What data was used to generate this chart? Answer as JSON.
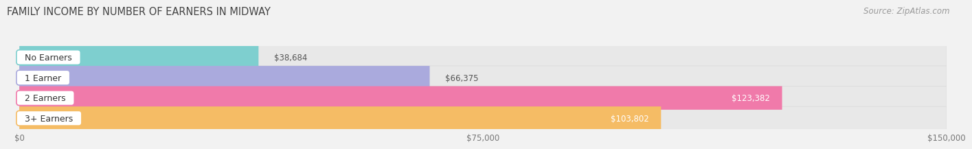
{
  "title": "FAMILY INCOME BY NUMBER OF EARNERS IN MIDWAY",
  "source": "Source: ZipAtlas.com",
  "categories": [
    "No Earners",
    "1 Earner",
    "2 Earners",
    "3+ Earners"
  ],
  "values": [
    38684,
    66375,
    123382,
    103802
  ],
  "bar_colors": [
    "#7ecfcf",
    "#aaaadd",
    "#f07aaa",
    "#f5bc65"
  ],
  "label_border_colors": [
    "#7ecfcf",
    "#aaaadd",
    "#f07aaa",
    "#f5bc65"
  ],
  "label_colors": [
    "#444444",
    "#444444",
    "#ffffff",
    "#ffffff"
  ],
  "value_inside_colors": [
    "#555555",
    "#555555",
    "#ffffff",
    "#ffffff"
  ],
  "xlim": [
    0,
    150000
  ],
  "xticks": [
    0,
    75000,
    150000
  ],
  "xtick_labels": [
    "$0",
    "$75,000",
    "$150,000"
  ],
  "value_labels": [
    "$38,684",
    "$66,375",
    "$123,382",
    "$103,802"
  ],
  "value_inside": [
    false,
    false,
    true,
    true
  ],
  "background_color": "#f2f2f2",
  "bar_bg_color": "#e8e8e8",
  "title_fontsize": 10.5,
  "source_fontsize": 8.5,
  "tick_fontsize": 8.5,
  "cat_label_fontsize": 9,
  "value_label_fontsize": 8.5
}
